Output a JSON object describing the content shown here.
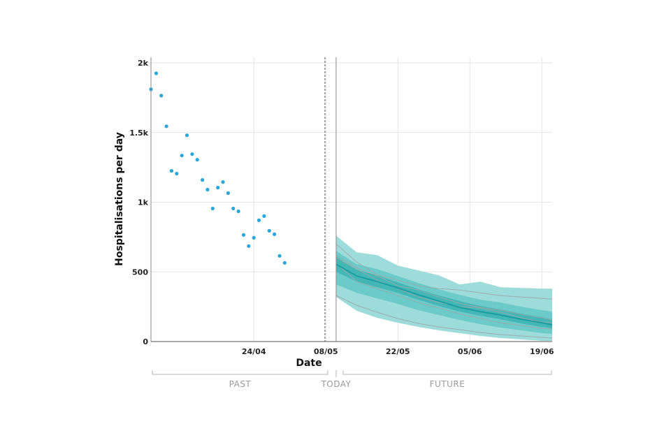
{
  "chart_data": {
    "type": "line",
    "xlabel": "Date",
    "ylabel": "Hospitalisations per day",
    "ylim": [
      0,
      2000
    ],
    "x_range": [
      "2021-04-04",
      "2021-06-21"
    ],
    "today": "2021-05-10",
    "y_ticks": [
      {
        "value": 0,
        "label": "0"
      },
      {
        "value": 500,
        "label": "500"
      },
      {
        "value": 1000,
        "label": "1k"
      },
      {
        "value": 1500,
        "label": "1.5k"
      },
      {
        "value": 2000,
        "label": "2k"
      }
    ],
    "x_ticks": [
      {
        "date": "2021-04-24",
        "label": "24/04"
      },
      {
        "date": "2021-05-08",
        "label": "08/05"
      },
      {
        "date": "2021-05-22",
        "label": "22/05"
      },
      {
        "date": "2021-06-05",
        "label": "05/06"
      },
      {
        "date": "2021-06-19",
        "label": "19/06"
      }
    ],
    "period_labels": {
      "past": "PAST",
      "today": "TODAY",
      "future": "FUTURE"
    },
    "colors": {
      "points": "#2aa6d8",
      "band_outer": "#9edcdb",
      "band_middle": "#6ccac9",
      "band_inner": "#45b6b6",
      "median": "#1b9ea1",
      "scenario": "#9aa8a8",
      "grid": "#e6e6e6"
    },
    "observed": [
      {
        "date": "2021-04-04",
        "value": 1810
      },
      {
        "date": "2021-04-05",
        "value": 1925
      },
      {
        "date": "2021-04-06",
        "value": 1765
      },
      {
        "date": "2021-04-07",
        "value": 1545
      },
      {
        "date": "2021-04-08",
        "value": 1225
      },
      {
        "date": "2021-04-09",
        "value": 1205
      },
      {
        "date": "2021-04-10",
        "value": 1335
      },
      {
        "date": "2021-04-11",
        "value": 1480
      },
      {
        "date": "2021-04-12",
        "value": 1345
      },
      {
        "date": "2021-04-13",
        "value": 1305
      },
      {
        "date": "2021-04-14",
        "value": 1160
      },
      {
        "date": "2021-04-15",
        "value": 1090
      },
      {
        "date": "2021-04-16",
        "value": 955
      },
      {
        "date": "2021-04-17",
        "value": 1105
      },
      {
        "date": "2021-04-18",
        "value": 1145
      },
      {
        "date": "2021-04-19",
        "value": 1065
      },
      {
        "date": "2021-04-20",
        "value": 955
      },
      {
        "date": "2021-04-21",
        "value": 935
      },
      {
        "date": "2021-04-22",
        "value": 765
      },
      {
        "date": "2021-04-23",
        "value": 685
      },
      {
        "date": "2021-04-24",
        "value": 745
      },
      {
        "date": "2021-04-25",
        "value": 870
      },
      {
        "date": "2021-04-26",
        "value": 900
      },
      {
        "date": "2021-04-27",
        "value": 795
      },
      {
        "date": "2021-04-28",
        "value": 770
      },
      {
        "date": "2021-04-29",
        "value": 615
      },
      {
        "date": "2021-04-30",
        "value": 565
      }
    ],
    "forecast": {
      "x": [
        "2021-05-10",
        "2021-05-14",
        "2021-05-18",
        "2021-05-22",
        "2021-05-26",
        "2021-05-30",
        "2021-06-03",
        "2021-06-07",
        "2021-06-11",
        "2021-06-15",
        "2021-06-19",
        "2021-06-21"
      ],
      "median": [
        555,
        470,
        430,
        385,
        335,
        290,
        245,
        215,
        190,
        160,
        135,
        120
      ],
      "band_inner_low": [
        500,
        430,
        390,
        350,
        300,
        255,
        215,
        185,
        160,
        130,
        105,
        95
      ],
      "band_inner_high": [
        610,
        515,
        475,
        425,
        375,
        330,
        290,
        255,
        230,
        200,
        175,
        160
      ],
      "band_middle_low": [
        410,
        350,
        310,
        270,
        225,
        190,
        155,
        125,
        100,
        80,
        60,
        55
      ],
      "band_middle_high": [
        650,
        555,
        520,
        470,
        420,
        375,
        335,
        300,
        280,
        250,
        225,
        215
      ],
      "band_outer_low": [
        320,
        220,
        170,
        135,
        105,
        80,
        60,
        40,
        25,
        15,
        5,
        5
      ],
      "band_outer_high": [
        760,
        640,
        620,
        545,
        510,
        475,
        410,
        430,
        390,
        385,
        380,
        380
      ],
      "scenarios": [
        [
          700,
          570,
          480,
          440,
          400,
          380,
          370,
          350,
          330,
          320,
          310,
          305
        ],
        [
          620,
          530,
          470,
          400,
          370,
          320,
          275,
          245,
          225,
          195,
          170,
          155
        ],
        [
          560,
          430,
          380,
          330,
          280,
          240,
          200,
          165,
          135,
          115,
          95,
          90
        ],
        [
          600,
          520,
          440,
          380,
          320,
          280,
          250,
          240,
          210,
          170,
          140,
          135
        ],
        [
          330,
          260,
          210,
          165,
          130,
          105,
          85,
          65,
          50,
          40,
          30,
          25
        ]
      ]
    }
  }
}
